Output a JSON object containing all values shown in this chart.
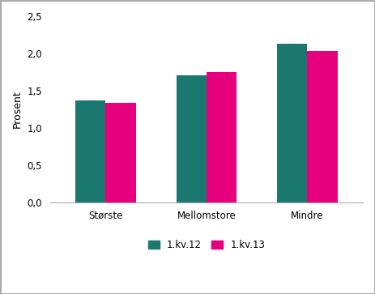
{
  "categories": [
    "Største",
    "Mellomstore",
    "Mindre"
  ],
  "series": {
    "1.kv.12": [
      1.37,
      1.71,
      2.13
    ],
    "1.kv.13": [
      1.34,
      1.75,
      2.03
    ]
  },
  "colors": {
    "1.kv.12": "#1a7870",
    "1.kv.13": "#e6007e"
  },
  "ylabel": "Prosent",
  "ylim": [
    0,
    2.5
  ],
  "yticks": [
    0.0,
    0.5,
    1.0,
    1.5,
    2.0,
    2.5
  ],
  "ytick_labels": [
    "0,0",
    "0,5",
    "1,0",
    "1,5",
    "2,0",
    "2,5"
  ],
  "bar_width": 0.3,
  "background_color": "#ffffff",
  "plot_background": "#ffffff",
  "legend_labels": [
    "1.kv.12",
    "1.kv.13"
  ],
  "ylabel_fontsize": 9,
  "tick_fontsize": 8.5,
  "legend_fontsize": 8.5,
  "border_color": "#aaaaaa"
}
